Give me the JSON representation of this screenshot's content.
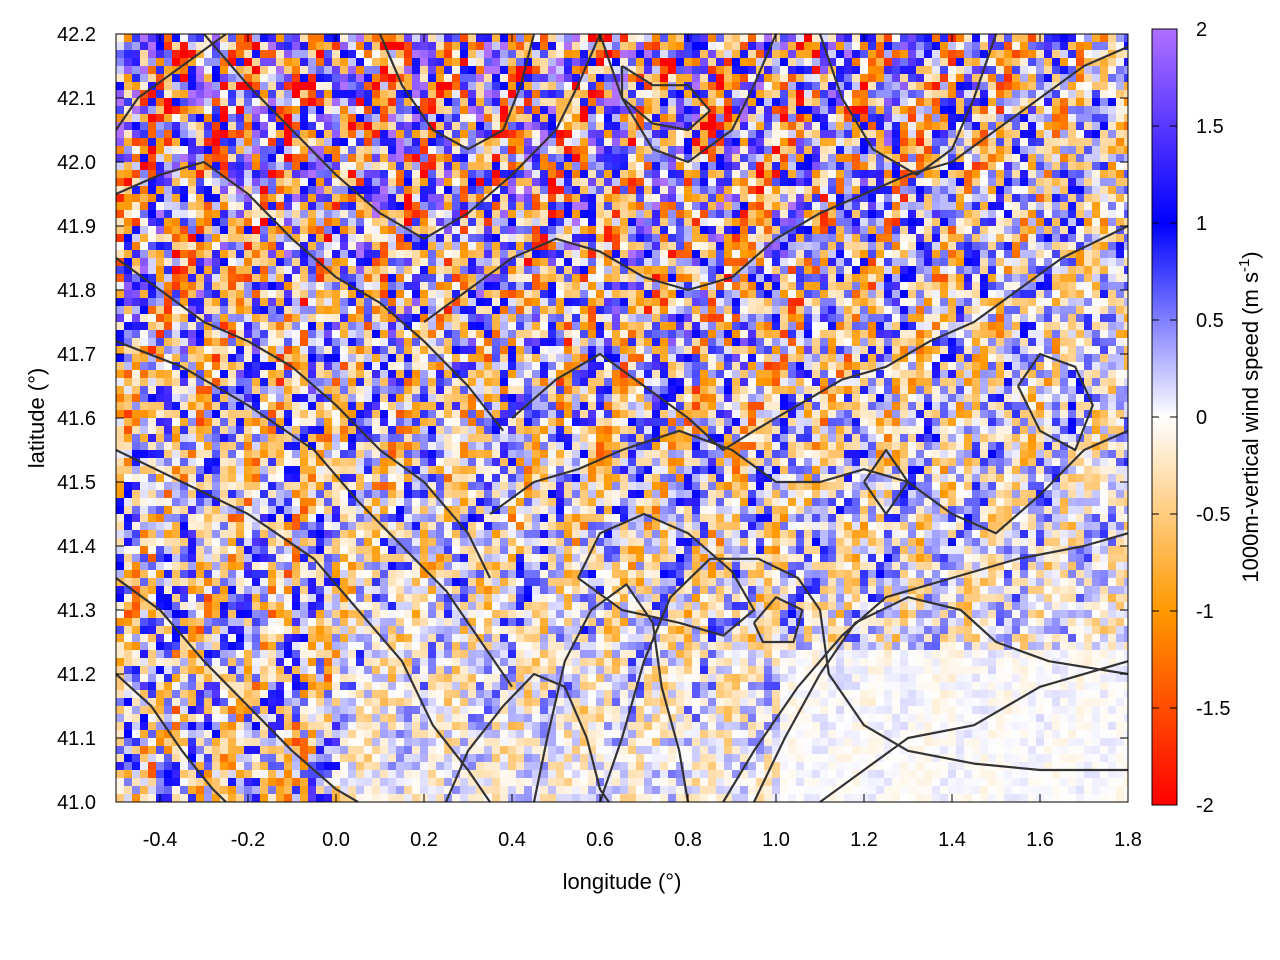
{
  "chart_data": {
    "type": "heatmap",
    "title": "",
    "xlabel": "longitude (°)",
    "ylabel": "latitude (°)",
    "colorbar_label": "1000m-vertical wind speed (m s",
    "colorbar_label_sup": "-1",
    "colorbar_label_end": ")",
    "xlim": [
      -0.5,
      1.8
    ],
    "ylim": [
      41.0,
      42.2
    ],
    "x_ticks": [
      "-0.4",
      "-0.2",
      "0.0",
      "0.2",
      "0.4",
      "0.6",
      "0.8",
      "1.0",
      "1.2",
      "1.4",
      "1.6",
      "1.8"
    ],
    "y_ticks": [
      "41.0",
      "41.1",
      "41.2",
      "41.3",
      "41.4",
      "41.5",
      "41.6",
      "41.7",
      "41.8",
      "41.9",
      "42.0",
      "42.1",
      "42.2"
    ],
    "colorbar": {
      "range": [
        -2,
        2
      ],
      "ticks": [
        "2",
        "1.5",
        "1",
        "0.5",
        "0",
        "-0.5",
        "-1",
        "-1.5",
        "-2"
      ],
      "colors": [
        "#ff0000",
        "#ff9900",
        "#ffffff",
        "#0000ff",
        "#b070ff"
      ]
    },
    "grid": false,
    "overlay": "terrain contours (dark gray lines)",
    "contours": [
      [
        [
          -0.5,
          41.85
        ],
        [
          -0.4,
          41.8
        ],
        [
          -0.3,
          41.75
        ],
        [
          -0.2,
          41.72
        ],
        [
          -0.1,
          41.68
        ],
        [
          0.0,
          41.62
        ],
        [
          0.1,
          41.55
        ],
        [
          0.2,
          41.5
        ],
        [
          0.3,
          41.42
        ],
        [
          0.35,
          41.35
        ]
      ],
      [
        [
          -0.5,
          41.72
        ],
        [
          -0.35,
          41.68
        ],
        [
          -0.2,
          41.62
        ],
        [
          -0.05,
          41.55
        ],
        [
          0.05,
          41.47
        ],
        [
          0.15,
          41.4
        ],
        [
          0.25,
          41.33
        ],
        [
          0.33,
          41.25
        ],
        [
          0.4,
          41.18
        ]
      ],
      [
        [
          -0.5,
          41.55
        ],
        [
          -0.35,
          41.5
        ],
        [
          -0.2,
          41.45
        ],
        [
          -0.05,
          41.38
        ],
        [
          0.05,
          41.3
        ],
        [
          0.15,
          41.22
        ],
        [
          0.22,
          41.12
        ],
        [
          0.3,
          41.05
        ],
        [
          0.35,
          41.0
        ]
      ],
      [
        [
          -0.5,
          41.35
        ],
        [
          -0.4,
          41.3
        ],
        [
          -0.3,
          41.22
        ],
        [
          -0.2,
          41.15
        ],
        [
          -0.1,
          41.08
        ],
        [
          0.0,
          41.02
        ],
        [
          0.05,
          41.0
        ]
      ],
      [
        [
          -0.5,
          41.2
        ],
        [
          -0.42,
          41.15
        ],
        [
          -0.35,
          41.08
        ],
        [
          -0.28,
          41.02
        ],
        [
          -0.25,
          41.0
        ]
      ],
      [
        [
          0.25,
          41.0
        ],
        [
          0.3,
          41.08
        ],
        [
          0.38,
          41.15
        ],
        [
          0.45,
          41.2
        ],
        [
          0.52,
          41.18
        ],
        [
          0.57,
          41.1
        ],
        [
          0.6,
          41.02
        ],
        [
          0.62,
          41.0
        ]
      ],
      [
        [
          0.45,
          41.0
        ],
        [
          0.48,
          41.1
        ],
        [
          0.52,
          41.22
        ],
        [
          0.58,
          41.3
        ],
        [
          0.66,
          41.34
        ],
        [
          0.72,
          41.28
        ],
        [
          0.74,
          41.18
        ],
        [
          0.78,
          41.08
        ],
        [
          0.8,
          41.0
        ]
      ],
      [
        [
          0.6,
          41.0
        ],
        [
          0.65,
          41.1
        ],
        [
          0.7,
          41.22
        ],
        [
          0.76,
          41.32
        ],
        [
          0.85,
          41.38
        ],
        [
          0.96,
          41.38
        ],
        [
          1.05,
          41.35
        ],
        [
          1.1,
          41.3
        ],
        [
          1.12,
          41.2
        ],
        [
          1.2,
          41.12
        ],
        [
          1.3,
          41.08
        ],
        [
          1.45,
          41.06
        ],
        [
          1.6,
          41.05
        ],
        [
          1.8,
          41.05
        ]
      ],
      [
        [
          0.88,
          41.0
        ],
        [
          0.95,
          41.08
        ],
        [
          1.05,
          41.18
        ],
        [
          1.15,
          41.26
        ],
        [
          1.25,
          41.32
        ],
        [
          1.4,
          41.35
        ],
        [
          1.55,
          41.38
        ],
        [
          1.7,
          41.4
        ],
        [
          1.8,
          41.42
        ]
      ],
      [
        [
          0.95,
          41.0
        ],
        [
          1.02,
          41.1
        ],
        [
          1.1,
          41.2
        ],
        [
          1.18,
          41.28
        ],
        [
          1.3,
          41.32
        ],
        [
          1.42,
          41.3
        ],
        [
          1.5,
          41.25
        ],
        [
          1.62,
          41.22
        ],
        [
          1.8,
          41.2
        ]
      ],
      [
        [
          1.1,
          41.0
        ],
        [
          1.2,
          41.05
        ],
        [
          1.3,
          41.1
        ],
        [
          1.45,
          41.12
        ],
        [
          1.6,
          41.18
        ],
        [
          1.8,
          41.22
        ]
      ],
      [
        [
          0.55,
          41.35
        ],
        [
          0.6,
          41.42
        ],
        [
          0.7,
          41.45
        ],
        [
          0.8,
          41.42
        ],
        [
          0.9,
          41.36
        ],
        [
          0.95,
          41.3
        ],
        [
          0.88,
          41.26
        ],
        [
          0.78,
          41.28
        ],
        [
          0.65,
          41.3
        ],
        [
          0.55,
          41.35
        ]
      ],
      [
        [
          0.95,
          41.28
        ],
        [
          1.0,
          41.32
        ],
        [
          1.06,
          41.3
        ],
        [
          1.04,
          41.25
        ],
        [
          0.97,
          41.25
        ],
        [
          0.95,
          41.28
        ]
      ],
      [
        [
          0.35,
          41.45
        ],
        [
          0.45,
          41.5
        ],
        [
          0.55,
          41.52
        ],
        [
          0.65,
          41.55
        ],
        [
          0.78,
          41.58
        ],
        [
          0.9,
          41.55
        ],
        [
          1.0,
          41.5
        ],
        [
          1.1,
          41.5
        ],
        [
          1.2,
          41.52
        ],
        [
          1.3,
          41.5
        ],
        [
          1.4,
          41.45
        ],
        [
          1.5,
          41.42
        ],
        [
          1.6,
          41.48
        ],
        [
          1.7,
          41.55
        ],
        [
          1.8,
          41.58
        ]
      ],
      [
        [
          0.4,
          41.6
        ],
        [
          0.5,
          41.66
        ],
        [
          0.6,
          41.7
        ],
        [
          0.7,
          41.65
        ],
        [
          0.8,
          41.6
        ],
        [
          0.88,
          41.55
        ],
        [
          0.95,
          41.58
        ],
        [
          1.05,
          41.62
        ],
        [
          1.15,
          41.66
        ],
        [
          1.25,
          41.68
        ],
        [
          1.35,
          41.72
        ],
        [
          1.45,
          41.75
        ],
        [
          1.55,
          41.8
        ],
        [
          1.65,
          41.85
        ],
        [
          1.8,
          41.9
        ]
      ],
      [
        [
          0.2,
          41.75
        ],
        [
          0.3,
          41.8
        ],
        [
          0.4,
          41.85
        ],
        [
          0.5,
          41.88
        ],
        [
          0.6,
          41.86
        ],
        [
          0.7,
          41.82
        ],
        [
          0.8,
          41.8
        ],
        [
          0.9,
          41.82
        ],
        [
          1.0,
          41.88
        ],
        [
          1.1,
          41.92
        ],
        [
          1.2,
          41.95
        ],
        [
          1.3,
          41.98
        ],
        [
          1.4,
          42.0
        ],
        [
          1.5,
          42.05
        ],
        [
          1.6,
          42.1
        ],
        [
          1.7,
          42.15
        ],
        [
          1.8,
          42.18
        ]
      ],
      [
        [
          -0.3,
          42.2
        ],
        [
          -0.2,
          42.12
        ],
        [
          -0.1,
          42.05
        ],
        [
          0.0,
          41.98
        ],
        [
          0.1,
          41.92
        ],
        [
          0.2,
          41.88
        ],
        [
          0.3,
          41.92
        ],
        [
          0.4,
          41.98
        ],
        [
          0.5,
          42.05
        ],
        [
          0.55,
          42.12
        ],
        [
          0.6,
          42.2
        ]
      ],
      [
        [
          0.6,
          42.2
        ],
        [
          0.65,
          42.1
        ],
        [
          0.72,
          42.02
        ],
        [
          0.8,
          42.0
        ],
        [
          0.9,
          42.05
        ],
        [
          0.95,
          42.12
        ],
        [
          1.0,
          42.2
        ]
      ],
      [
        [
          0.65,
          42.15
        ],
        [
          0.72,
          42.12
        ],
        [
          0.8,
          42.12
        ],
        [
          0.85,
          42.08
        ],
        [
          0.8,
          42.05
        ],
        [
          0.72,
          42.06
        ],
        [
          0.65,
          42.1
        ],
        [
          0.65,
          42.15
        ]
      ],
      [
        [
          -0.5,
          42.05
        ],
        [
          -0.45,
          42.1
        ],
        [
          -0.35,
          42.15
        ],
        [
          -0.25,
          42.2
        ]
      ],
      [
        [
          -0.5,
          41.95
        ],
        [
          -0.4,
          41.98
        ],
        [
          -0.3,
          42.0
        ],
        [
          -0.2,
          41.95
        ],
        [
          -0.1,
          41.88
        ],
        [
          0.0,
          41.82
        ],
        [
          0.1,
          41.78
        ],
        [
          0.2,
          41.72
        ],
        [
          0.3,
          41.65
        ],
        [
          0.38,
          41.58
        ]
      ],
      [
        [
          0.1,
          42.2
        ],
        [
          0.15,
          42.12
        ],
        [
          0.22,
          42.05
        ],
        [
          0.3,
          42.02
        ],
        [
          0.38,
          42.05
        ],
        [
          0.42,
          42.12
        ],
        [
          0.45,
          42.2
        ]
      ],
      [
        [
          1.1,
          42.2
        ],
        [
          1.15,
          42.1
        ],
        [
          1.22,
          42.02
        ],
        [
          1.32,
          41.98
        ],
        [
          1.4,
          42.02
        ],
        [
          1.45,
          42.1
        ],
        [
          1.5,
          42.2
        ]
      ],
      [
        [
          1.55,
          41.65
        ],
        [
          1.6,
          41.58
        ],
        [
          1.68,
          41.55
        ],
        [
          1.72,
          41.62
        ],
        [
          1.68,
          41.68
        ],
        [
          1.6,
          41.7
        ],
        [
          1.55,
          41.65
        ]
      ],
      [
        [
          1.2,
          41.5
        ],
        [
          1.25,
          41.45
        ],
        [
          1.3,
          41.5
        ],
        [
          1.25,
          41.55
        ],
        [
          1.2,
          41.5
        ]
      ]
    ]
  }
}
